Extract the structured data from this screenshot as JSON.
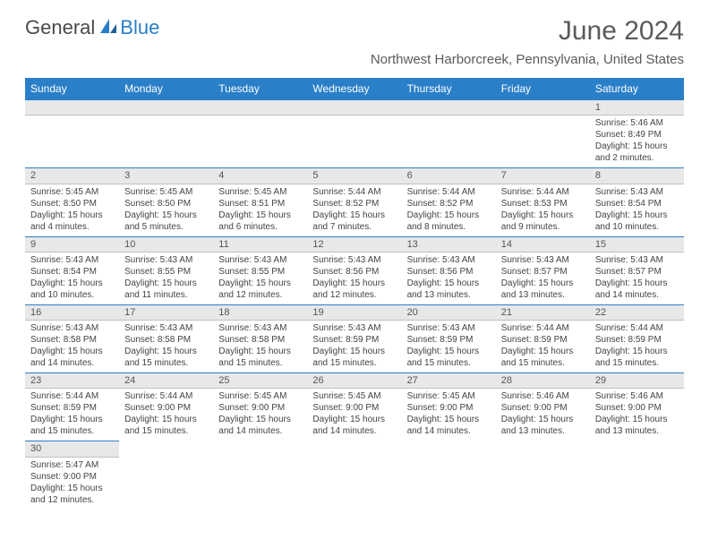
{
  "logo": {
    "part1": "General",
    "part2": "Blue"
  },
  "title": "June 2024",
  "location": "Northwest Harborcreek, Pennsylvania, United States",
  "colors": {
    "header_bg": "#2a7fc9",
    "header_text": "#ffffff",
    "daynum_bg": "#e8e8e8",
    "row_border": "#2a7fc9",
    "text": "#444444"
  },
  "columns": [
    "Sunday",
    "Monday",
    "Tuesday",
    "Wednesday",
    "Thursday",
    "Friday",
    "Saturday"
  ],
  "weeks": [
    [
      null,
      null,
      null,
      null,
      null,
      null,
      {
        "n": "1",
        "sr": "5:46 AM",
        "ss": "8:49 PM",
        "dl": "15 hours and 2 minutes."
      }
    ],
    [
      {
        "n": "2",
        "sr": "5:45 AM",
        "ss": "8:50 PM",
        "dl": "15 hours and 4 minutes."
      },
      {
        "n": "3",
        "sr": "5:45 AM",
        "ss": "8:50 PM",
        "dl": "15 hours and 5 minutes."
      },
      {
        "n": "4",
        "sr": "5:45 AM",
        "ss": "8:51 PM",
        "dl": "15 hours and 6 minutes."
      },
      {
        "n": "5",
        "sr": "5:44 AM",
        "ss": "8:52 PM",
        "dl": "15 hours and 7 minutes."
      },
      {
        "n": "6",
        "sr": "5:44 AM",
        "ss": "8:52 PM",
        "dl": "15 hours and 8 minutes."
      },
      {
        "n": "7",
        "sr": "5:44 AM",
        "ss": "8:53 PM",
        "dl": "15 hours and 9 minutes."
      },
      {
        "n": "8",
        "sr": "5:43 AM",
        "ss": "8:54 PM",
        "dl": "15 hours and 10 minutes."
      }
    ],
    [
      {
        "n": "9",
        "sr": "5:43 AM",
        "ss": "8:54 PM",
        "dl": "15 hours and 10 minutes."
      },
      {
        "n": "10",
        "sr": "5:43 AM",
        "ss": "8:55 PM",
        "dl": "15 hours and 11 minutes."
      },
      {
        "n": "11",
        "sr": "5:43 AM",
        "ss": "8:55 PM",
        "dl": "15 hours and 12 minutes."
      },
      {
        "n": "12",
        "sr": "5:43 AM",
        "ss": "8:56 PM",
        "dl": "15 hours and 12 minutes."
      },
      {
        "n": "13",
        "sr": "5:43 AM",
        "ss": "8:56 PM",
        "dl": "15 hours and 13 minutes."
      },
      {
        "n": "14",
        "sr": "5:43 AM",
        "ss": "8:57 PM",
        "dl": "15 hours and 13 minutes."
      },
      {
        "n": "15",
        "sr": "5:43 AM",
        "ss": "8:57 PM",
        "dl": "15 hours and 14 minutes."
      }
    ],
    [
      {
        "n": "16",
        "sr": "5:43 AM",
        "ss": "8:58 PM",
        "dl": "15 hours and 14 minutes."
      },
      {
        "n": "17",
        "sr": "5:43 AM",
        "ss": "8:58 PM",
        "dl": "15 hours and 15 minutes."
      },
      {
        "n": "18",
        "sr": "5:43 AM",
        "ss": "8:58 PM",
        "dl": "15 hours and 15 minutes."
      },
      {
        "n": "19",
        "sr": "5:43 AM",
        "ss": "8:59 PM",
        "dl": "15 hours and 15 minutes."
      },
      {
        "n": "20",
        "sr": "5:43 AM",
        "ss": "8:59 PM",
        "dl": "15 hours and 15 minutes."
      },
      {
        "n": "21",
        "sr": "5:44 AM",
        "ss": "8:59 PM",
        "dl": "15 hours and 15 minutes."
      },
      {
        "n": "22",
        "sr": "5:44 AM",
        "ss": "8:59 PM",
        "dl": "15 hours and 15 minutes."
      }
    ],
    [
      {
        "n": "23",
        "sr": "5:44 AM",
        "ss": "8:59 PM",
        "dl": "15 hours and 15 minutes."
      },
      {
        "n": "24",
        "sr": "5:44 AM",
        "ss": "9:00 PM",
        "dl": "15 hours and 15 minutes."
      },
      {
        "n": "25",
        "sr": "5:45 AM",
        "ss": "9:00 PM",
        "dl": "15 hours and 14 minutes."
      },
      {
        "n": "26",
        "sr": "5:45 AM",
        "ss": "9:00 PM",
        "dl": "15 hours and 14 minutes."
      },
      {
        "n": "27",
        "sr": "5:45 AM",
        "ss": "9:00 PM",
        "dl": "15 hours and 14 minutes."
      },
      {
        "n": "28",
        "sr": "5:46 AM",
        "ss": "9:00 PM",
        "dl": "15 hours and 13 minutes."
      },
      {
        "n": "29",
        "sr": "5:46 AM",
        "ss": "9:00 PM",
        "dl": "15 hours and 13 minutes."
      }
    ],
    [
      {
        "n": "30",
        "sr": "5:47 AM",
        "ss": "9:00 PM",
        "dl": "15 hours and 12 minutes."
      },
      null,
      null,
      null,
      null,
      null,
      null
    ]
  ],
  "labels": {
    "sunrise": "Sunrise:",
    "sunset": "Sunset:",
    "daylight": "Daylight:"
  }
}
